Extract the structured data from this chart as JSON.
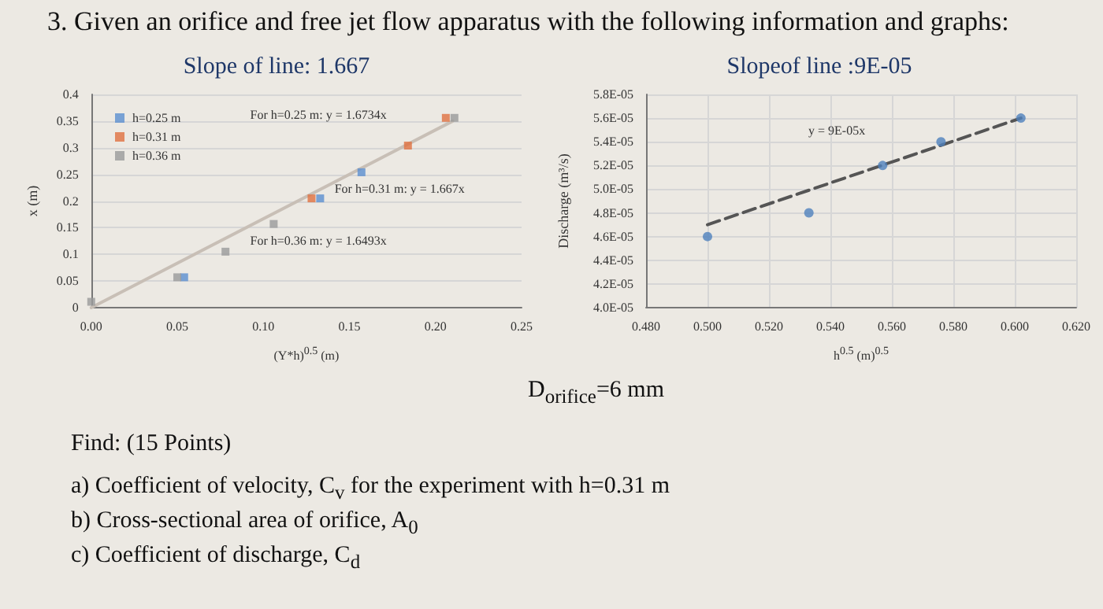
{
  "chart_data": [
    {
      "type": "scatter",
      "title": "Slope of line: 1.667",
      "xlabel": "(Y*h)$^{0.5}$ (m)",
      "ylabel": "x (m)",
      "xlim": [
        0,
        0.25
      ],
      "xticks": [
        {
          "value": 0,
          "label": "0.00"
        },
        {
          "value": 0.05,
          "label": "0.05"
        },
        {
          "value": 0.1,
          "label": "0.10"
        },
        {
          "value": 0.15,
          "label": "0.15"
        },
        {
          "value": 0.2,
          "label": "0.20"
        },
        {
          "value": 0.25,
          "label": "0.25"
        }
      ],
      "ylim": [
        0,
        0.4
      ],
      "yticks": [
        0,
        0.05,
        0.1,
        0.15,
        0.2,
        0.25,
        0.3,
        0.35,
        0.4
      ],
      "grid": "y",
      "legend": "top left",
      "line_style": "solid",
      "series": [
        {
          "name": "h=0.25 m",
          "marker": "square",
          "color": "#5b8fd0",
          "x": [
            0.054,
            0.133,
            0.157
          ],
          "values": [
            0.057,
            0.205,
            0.254
          ]
        },
        {
          "name": "h=0.31 m",
          "marker": "square",
          "color": "#e07040",
          "x": [
            0.128,
            0.184,
            0.206
          ],
          "values": [
            0.205,
            0.304,
            0.356
          ]
        },
        {
          "name": "h=0.36 m",
          "marker": "square",
          "color": "#9a9a9a",
          "x": [
            0.0,
            0.05,
            0.078,
            0.106,
            0.211
          ],
          "values": [
            0.011,
            0.057,
            0.105,
            0.157,
            0.356
          ]
        },
        {
          "type": "line",
          "marker": "none",
          "color": "#c8bfb6",
          "x": [
            0,
            0.21
          ],
          "values": [
            0,
            0.35
          ]
        }
      ],
      "annotations": [
        "3. Given an orifice and free jet flow apparatus with the following information and graphs:",
        "For h=0.25 m: y = 1.6734x",
        "For h=0.31 m: y = 1.667x",
        "For h=0.36 m: y = 1.6493x"
      ]
    },
    {
      "type": "scatter",
      "title": "Slopeof line :9E-05",
      "xlabel": "h$^{0.5}$ (m)$^{0.5}$",
      "ylabel": "Discharge (m³/s)",
      "xlim": [
        0.48,
        0.62
      ],
      "xticks": [
        {
          "value": 0.48,
          "label": "0.480"
        },
        {
          "value": 0.5,
          "label": "0.500"
        },
        {
          "value": 0.52,
          "label": "0.520"
        },
        {
          "value": 0.54,
          "label": "0.540"
        },
        {
          "value": 0.56,
          "label": "0.560"
        },
        {
          "value": 0.58,
          "label": "0.580"
        },
        {
          "value": 0.6,
          "label": "0.600"
        },
        {
          "value": 0.62,
          "label": "0.620"
        }
      ],
      "ylim": [
        4e-05,
        5.8e-05
      ],
      "yticks": [
        {
          "value": 4e-05,
          "label": "4.0E-05"
        },
        {
          "value": 4.2e-05,
          "label": "4.2E-05"
        },
        {
          "value": 4.4e-05,
          "label": "4.4E-05"
        },
        {
          "value": 4.6e-05,
          "label": "4.6E-05"
        },
        {
          "value": 4.8e-05,
          "label": "4.8E-05"
        },
        {
          "value": 5e-05,
          "label": "5.0E-05"
        },
        {
          "value": 5.2e-05,
          "label": "5.2E-05"
        },
        {
          "value": 5.4e-05,
          "label": "5.4E-05"
        },
        {
          "value": 5.6e-05,
          "label": "5.6E-05"
        },
        {
          "value": 5.8e-05,
          "label": "5.8E-05"
        }
      ],
      "grid": true,
      "line_style": "dashed",
      "series": [
        {
          "marker": "circle",
          "color": "#4f81bd",
          "x": [
            0.5,
            0.533,
            0.557,
            0.576,
            0.602
          ],
          "values": [
            4.6e-05,
            4.8e-05,
            5.2e-05,
            5.4e-05,
            5.6e-05
          ]
        },
        {
          "type": "line",
          "marker": "none",
          "color": "#555555",
          "x": [
            0.5,
            0.602
          ],
          "values": [
            4.7e-05,
            5.6e-05
          ]
        }
      ],
      "annotations": [
        "y = 9E-05x",
        "D$_{orifice}$=6 mm",
        "Find: (15 Points)",
        "a) Coefficient of velocity, C$_{v}$ for the experiment with h=0.31 m",
        "b) Cross-sectional area of orifice, A$_{0}$",
        "c) Coefficient of discharge, C$_{d}$"
      ]
    }
  ]
}
